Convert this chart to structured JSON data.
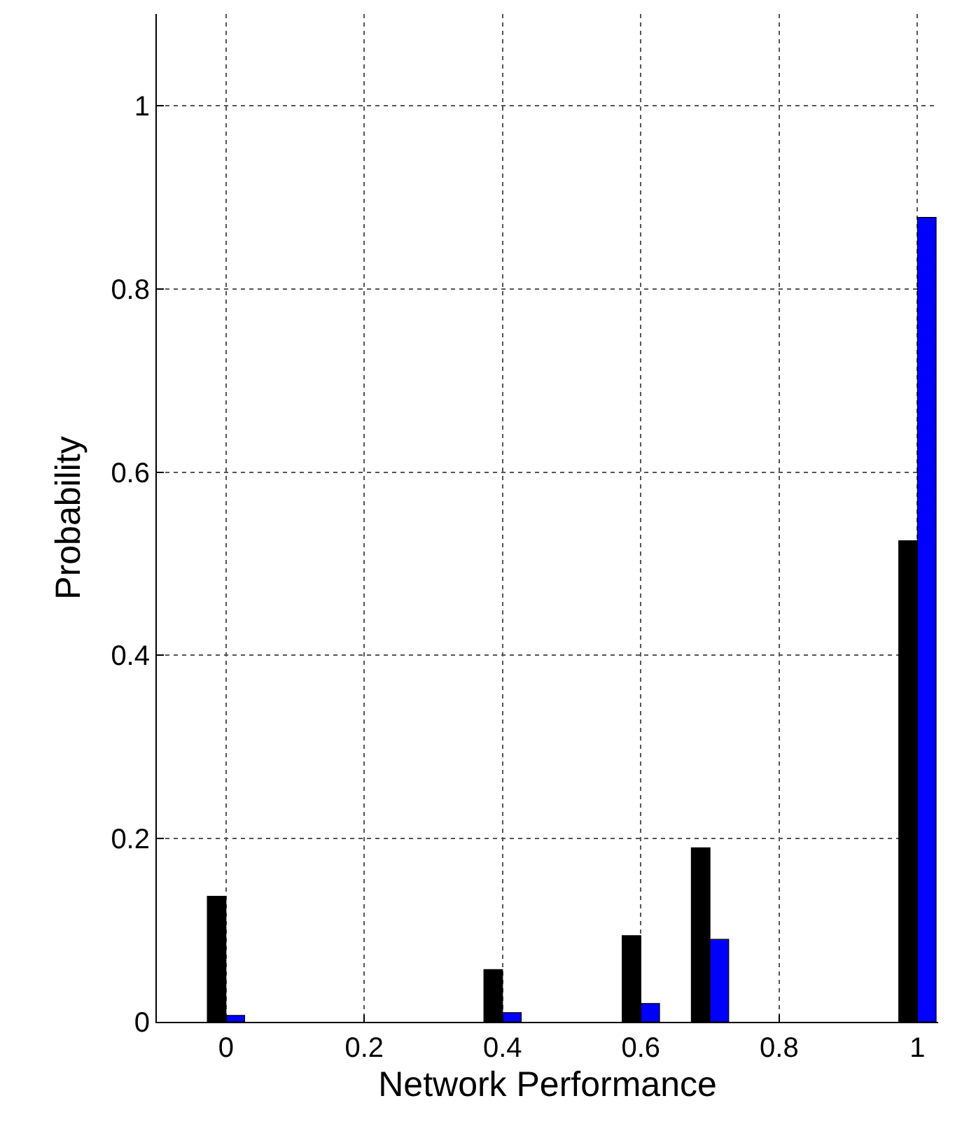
{
  "chart_data": {
    "type": "bar",
    "xlabel": "Network Performance",
    "ylabel": "Probability",
    "x": [
      0,
      0.4,
      0.6,
      0.7,
      1
    ],
    "series": [
      {
        "color": "#000000",
        "values": [
          0.137,
          0.057,
          0.094,
          0.19,
          0.525
        ]
      },
      {
        "color": "#0000ff",
        "values": [
          0.007,
          0.01,
          0.02,
          0.09,
          0.878
        ]
      }
    ],
    "xlim": [
      -0.1,
      1.03
    ],
    "xticks": [
      0,
      0.2,
      0.4,
      0.6,
      0.8,
      1
    ],
    "ylim": [
      0,
      1.1
    ],
    "yticks": [
      0,
      0.2,
      0.4,
      0.6,
      0.8,
      1
    ],
    "grid": true,
    "line_style": "dotted"
  }
}
